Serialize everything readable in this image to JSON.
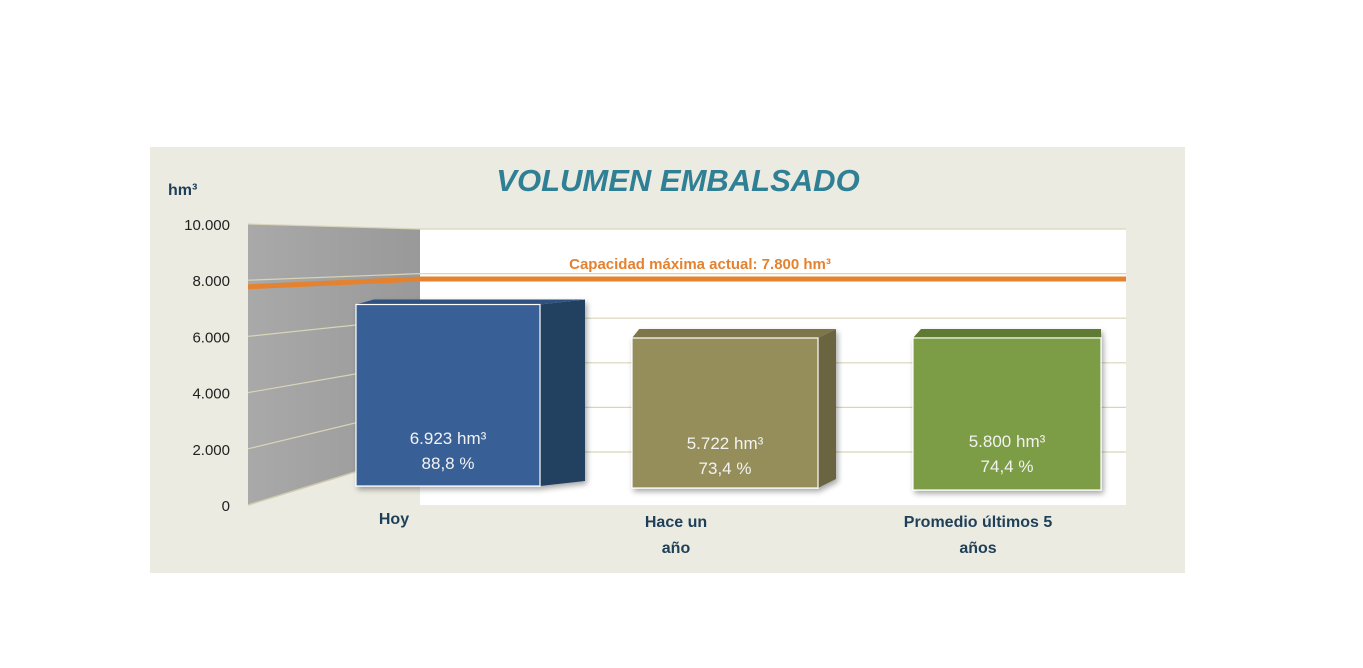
{
  "chart_data": {
    "type": "bar",
    "title": "VOLUMEN EMBALSADO",
    "ylabel": "hm³",
    "ylim": [
      0,
      10000
    ],
    "yticks": [
      "0",
      "2.000",
      "4.000",
      "6.000",
      "8.000",
      "10.000"
    ],
    "categories": [
      {
        "lines": [
          "Hoy"
        ]
      },
      {
        "lines": [
          "Hace un",
          "año"
        ]
      },
      {
        "lines": [
          "Promedio últimos 5",
          "años"
        ]
      }
    ],
    "values": [
      6923,
      5722,
      5800
    ],
    "data_labels": [
      {
        "volume": "6.923 hm³",
        "percent": "88,8 %"
      },
      {
        "volume": "5.722 hm³",
        "percent": "73,4 %"
      },
      {
        "volume": "5.800 hm³",
        "percent": "74,4 %"
      }
    ],
    "reference_line": {
      "value": 7800,
      "label": "Capacidad máxima actual: 7.800 hm³",
      "color": "#e4822f"
    },
    "colors": [
      "#386196",
      "#958e5a",
      "#7c9c44"
    ],
    "background": "#ecebe1",
    "grid": true
  }
}
